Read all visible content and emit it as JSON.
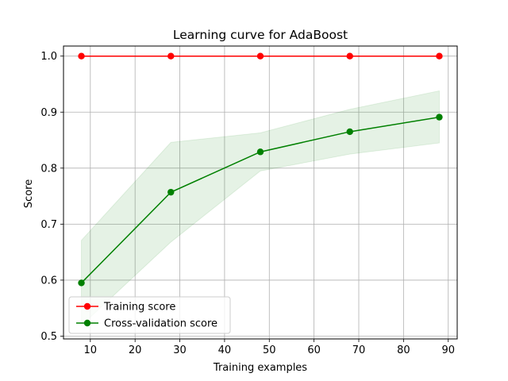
{
  "chart_data": {
    "type": "line",
    "title": "Learning curve for AdaBoost",
    "xlabel": "Training examples",
    "ylabel": "Score",
    "xlim": [
      4.0,
      92.0
    ],
    "ylim": [
      0.495,
      1.018
    ],
    "xticks": [
      10,
      20,
      30,
      40,
      50,
      60,
      70,
      80,
      90
    ],
    "yticks": [
      0.5,
      0.6,
      0.7,
      0.8,
      0.9,
      1.0
    ],
    "xtick_labels": [
      "10",
      "20",
      "30",
      "40",
      "50",
      "60",
      "70",
      "80",
      "90"
    ],
    "ytick_labels": [
      "0.5",
      "0.6",
      "0.7",
      "0.8",
      "0.9",
      "1.0"
    ],
    "grid": true,
    "legend_position": "lower-left",
    "x": [
      8,
      28,
      48,
      68,
      88
    ],
    "series": [
      {
        "name": "Training score",
        "color": "#ff0000",
        "values": [
          1.0,
          1.0,
          1.0,
          1.0,
          1.0
        ],
        "band_lower": [
          1.0,
          1.0,
          1.0,
          1.0,
          1.0
        ],
        "band_upper": [
          1.0,
          1.0,
          1.0,
          1.0,
          1.0
        ],
        "band_color": "#ff0000"
      },
      {
        "name": "Cross-validation score",
        "color": "#008000",
        "values": [
          0.595,
          0.757,
          0.829,
          0.865,
          0.891
        ],
        "band_lower": [
          0.519,
          0.668,
          0.795,
          0.825,
          0.845
        ],
        "band_upper": [
          0.671,
          0.846,
          0.863,
          0.905,
          0.938
        ],
        "band_color": "#008000"
      }
    ]
  }
}
